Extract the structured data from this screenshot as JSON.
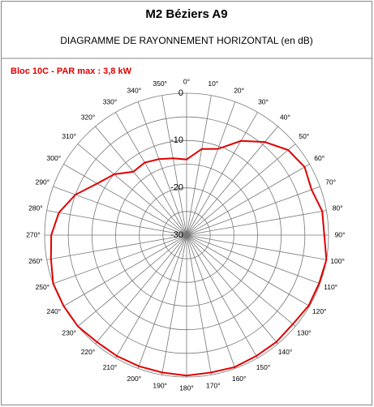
{
  "chart_data": {
    "type": "polar",
    "title": "M2 Béziers A9",
    "subtitle": "DIAGRAMME DE RAYONNEMENT HORIZONTAL  (en dB)",
    "series": [
      {
        "name": "Bloc 10C - PAR max : 3,8 kW",
        "color": "#e00000",
        "theta": [
          0,
          10,
          20,
          30,
          40,
          50,
          60,
          70,
          80,
          90,
          100,
          110,
          120,
          130,
          140,
          150,
          160,
          170,
          180,
          190,
          200,
          210,
          220,
          230,
          240,
          250,
          260,
          270,
          280,
          290,
          300,
          310,
          320,
          330,
          340,
          350
        ],
        "values": [
          -14,
          -11.5,
          -10.6,
          -7,
          -4.3,
          -2,
          -1.2,
          -1.9,
          -0.9,
          -0.9,
          0,
          -0.2,
          -0.2,
          -0.7,
          -0.5,
          -0.5,
          -0.3,
          -0.5,
          -0.3,
          -0.5,
          -0.5,
          -0.5,
          -0.5,
          0,
          0,
          0,
          -0.9,
          -1.4,
          -2.6,
          -5,
          -8.2,
          -10,
          -12.5,
          -12.3,
          -12.9,
          -13.5
        ]
      }
    ],
    "rlim": [
      -30,
      0
    ],
    "rticks": [
      0,
      -10,
      -20,
      -30
    ],
    "rgrid": [
      0,
      -5,
      -10,
      -15,
      -20,
      -25
    ],
    "thetaticks": [
      {
        "value": 0,
        "label": "0°"
      },
      {
        "value": 10,
        "label": "10°"
      },
      {
        "value": 20,
        "label": "20°"
      },
      {
        "value": 30,
        "label": "30°"
      },
      {
        "value": 40,
        "label": "40°"
      },
      {
        "value": 50,
        "label": "50°"
      },
      {
        "value": 60,
        "label": "60°"
      },
      {
        "value": 70,
        "label": "70°"
      },
      {
        "value": 80,
        "label": "80°"
      },
      {
        "value": 90,
        "label": "90°"
      },
      {
        "value": 100,
        "label": "100°"
      },
      {
        "value": 110,
        "label": "110°"
      },
      {
        "value": 120,
        "label": "120°"
      },
      {
        "value": 130,
        "label": "130°"
      },
      {
        "value": 140,
        "label": "140°"
      },
      {
        "value": 150,
        "label": "150°"
      },
      {
        "value": 160,
        "label": "160°"
      },
      {
        "value": 170,
        "label": "170°"
      },
      {
        "value": 180,
        "label": "180°"
      },
      {
        "value": 190,
        "label": "190°"
      },
      {
        "value": 200,
        "label": "200°"
      },
      {
        "value": 210,
        "label": "210°"
      },
      {
        "value": 220,
        "label": "220°"
      },
      {
        "value": 230,
        "label": "230°"
      },
      {
        "value": 240,
        "label": "240°"
      },
      {
        "value": 250,
        "label": "250°"
      },
      {
        "value": 260,
        "label": "260°"
      },
      {
        "value": 270,
        "label": "270°"
      },
      {
        "value": 280,
        "label": "280°"
      },
      {
        "value": 290,
        "label": "290°"
      },
      {
        "value": 300,
        "label": "300°"
      },
      {
        "value": 310,
        "label": "310°"
      },
      {
        "value": 320,
        "label": "320°"
      },
      {
        "value": 330,
        "label": "330°"
      },
      {
        "value": 340,
        "label": "340°"
      },
      {
        "value": 350,
        "label": "350°"
      }
    ]
  }
}
